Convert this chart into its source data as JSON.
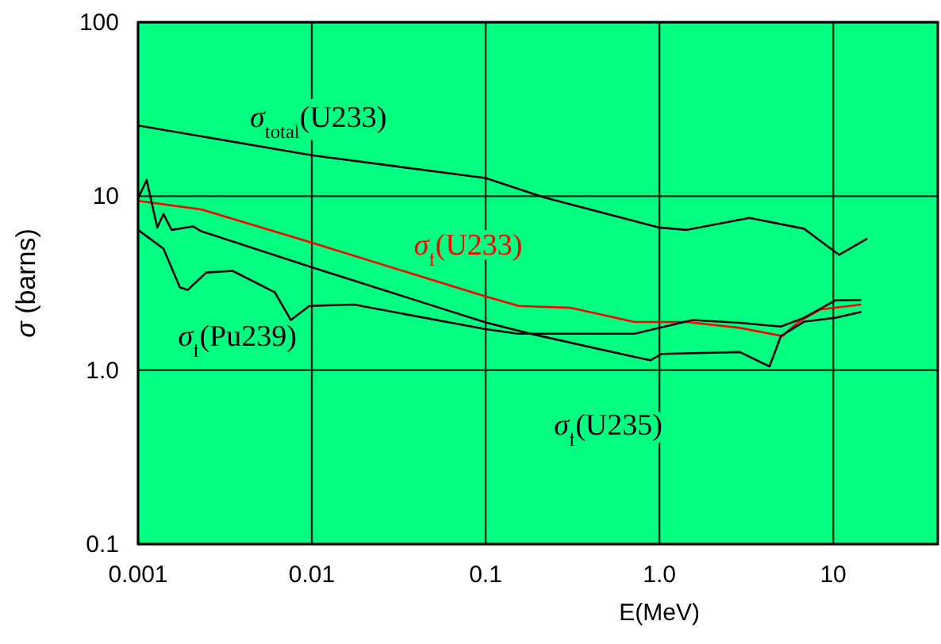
{
  "chart_data": {
    "type": "line",
    "xlabel": "E(MeV)",
    "ylabel": "σ (barns)",
    "log": "xy",
    "grid": true,
    "marker": "none",
    "line_style": "solid",
    "xlim": [
      0.001,
      40
    ],
    "ylim": [
      0.1,
      100
    ],
    "xticks": [
      0.001,
      0.01,
      0.1,
      {
        "value": 1,
        "label": "1.0"
      },
      10
    ],
    "yticks": [
      0.1,
      {
        "value": 1,
        "label": "1.0"
      },
      10,
      100
    ],
    "series": [
      {
        "name": "σ$_{total}$(U233)",
        "color": "#000000",
        "x": [
          0.001,
          0.01,
          0.1,
          0.22,
          1.0,
          1.44,
          3.3,
          6.8,
          10.8,
          15.7
        ],
        "values": [
          25.5,
          17.2,
          12.7,
          9.8,
          6.6,
          6.4,
          7.5,
          6.5,
          4.6,
          5.7
        ]
      },
      {
        "name": "σ$_{f}$(U233)",
        "color": "#ff0000",
        "x": [
          0.001,
          0.0023,
          0.01,
          0.1,
          0.155,
          0.31,
          0.72,
          1.44,
          2.9,
          5.1,
          6.3,
          8.4,
          14.5
        ],
        "values": [
          9.4,
          8.4,
          5.4,
          2.65,
          2.34,
          2.28,
          1.89,
          1.89,
          1.75,
          1.57,
          1.89,
          2.23,
          2.38
        ]
      },
      {
        "name": "σ$_{f}$(Pu239)",
        "color": "#000000",
        "x": [
          0.001,
          0.0014,
          0.00174,
          0.00193,
          0.00247,
          0.0035,
          0.00613,
          0.00757,
          0.00967,
          0.0175,
          0.1,
          0.154,
          0.72,
          1.55,
          2.9,
          5.0,
          6.8,
          10.3,
          14.5
        ],
        "values": [
          6.4,
          4.99,
          2.99,
          2.89,
          3.64,
          3.72,
          2.8,
          1.94,
          2.34,
          2.38,
          1.72,
          1.62,
          1.62,
          1.94,
          1.87,
          1.78,
          2.0,
          2.52,
          2.53
        ]
      },
      {
        "name": "σ$_{f}$(U235)",
        "color": "#000000",
        "x": [
          0.001,
          0.00112,
          0.00129,
          0.0014,
          0.00156,
          0.00207,
          0.0023,
          0.01,
          0.1,
          0.176,
          0.72,
          0.89,
          1.03,
          2.9,
          4.3,
          5.0,
          6.8,
          10.3,
          14.5
        ],
        "values": [
          9.7,
          12.4,
          6.6,
          7.9,
          6.4,
          6.7,
          6.3,
          3.9,
          1.88,
          1.63,
          1.19,
          1.14,
          1.24,
          1.27,
          1.05,
          1.57,
          1.9,
          2.0,
          2.16
        ]
      }
    ]
  }
}
